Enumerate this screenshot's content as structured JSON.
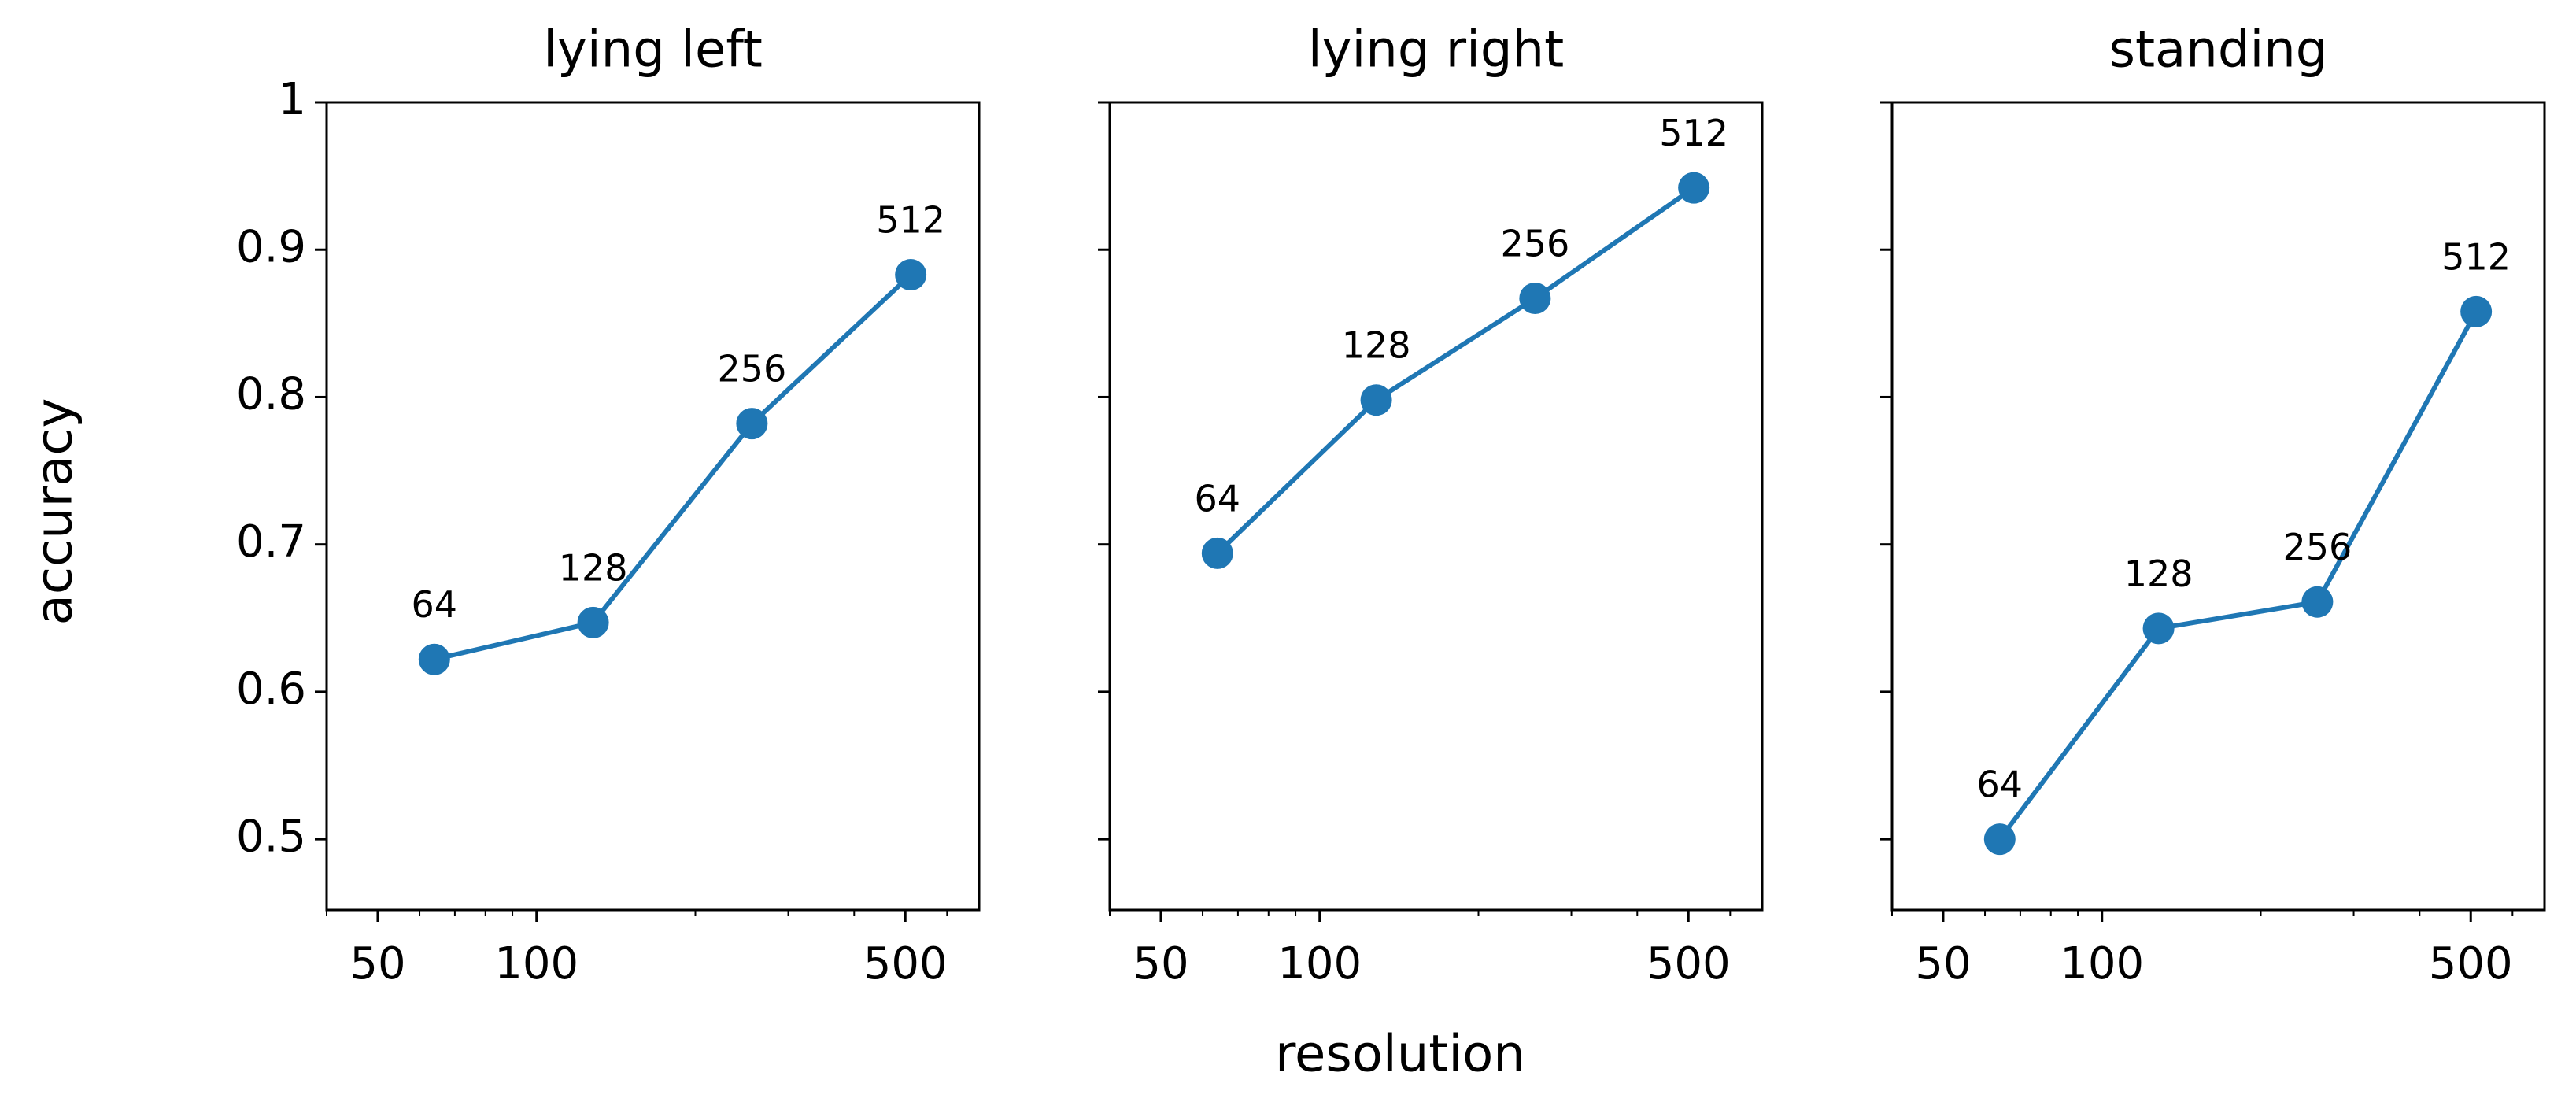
{
  "chart_data": [
    {
      "type": "line",
      "title": "lying left",
      "ylabel": "accuracy",
      "x": [
        64,
        128,
        256,
        512
      ],
      "values": [
        0.622,
        0.647,
        0.782,
        0.883
      ],
      "color": "#1f77b4",
      "xlog": true,
      "xlim": [
        40,
        690
      ],
      "xticks": [
        50,
        100,
        500
      ],
      "xminorticks": [
        40,
        60,
        70,
        80,
        90,
        200,
        300,
        400,
        600
      ],
      "ylim": [
        0.452,
        1.0
      ],
      "yticks": [
        0.5,
        0.6,
        0.7,
        0.8,
        0.9,
        1.0
      ]
    },
    {
      "type": "line",
      "title": "lying right",
      "xlabel": "resolution",
      "x": [
        64,
        128,
        256,
        512
      ],
      "values": [
        0.694,
        0.798,
        0.867,
        0.942
      ],
      "color": "#1f77b4",
      "xlog": true,
      "xlim": [
        40,
        690
      ],
      "xticks": [
        50,
        100,
        500
      ],
      "xminorticks": [
        40,
        60,
        70,
        80,
        90,
        200,
        300,
        400,
        600
      ],
      "ylim": [
        0.452,
        1.0
      ],
      "yticks": [
        0.5,
        0.6,
        0.7,
        0.8,
        0.9,
        1.0
      ]
    },
    {
      "type": "line",
      "title": "standing",
      "x": [
        64,
        128,
        256,
        512
      ],
      "values": [
        0.5,
        0.643,
        0.661,
        0.858
      ],
      "color": "#1f77b4",
      "xlog": true,
      "xlim": [
        40,
        690
      ],
      "xticks": [
        50,
        100,
        500
      ],
      "xminorticks": [
        40,
        60,
        70,
        80,
        90,
        200,
        300,
        400,
        600
      ],
      "ylim": [
        0.452,
        1.0
      ],
      "yticks": [
        0.5,
        0.6,
        0.7,
        0.8,
        0.9,
        1.0
      ]
    }
  ]
}
